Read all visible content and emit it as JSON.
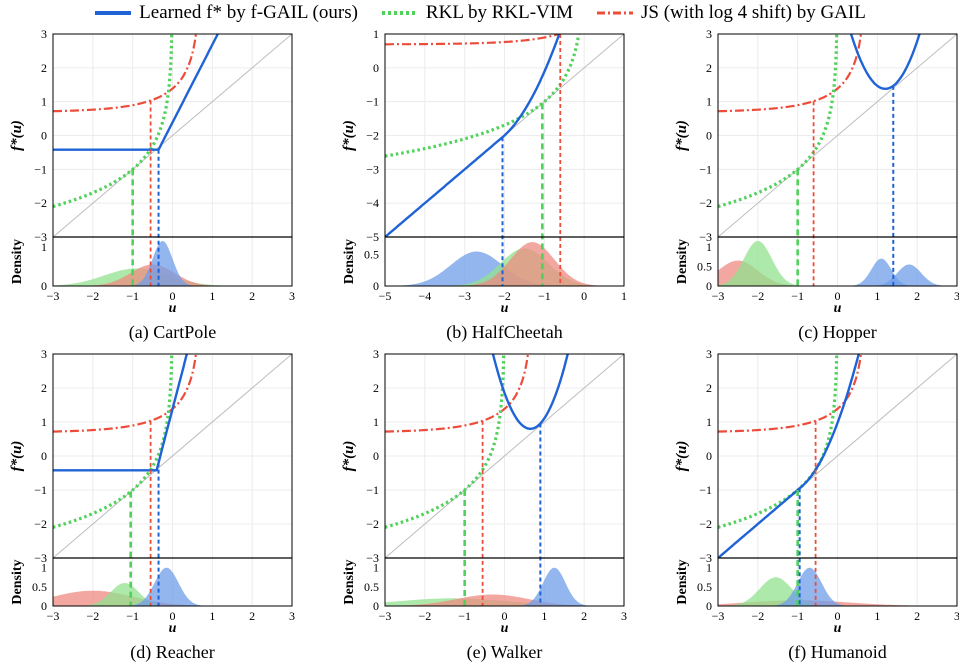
{
  "colors": {
    "learned": "#1f63d6",
    "rkl": "#4fd15a",
    "js": "#ec4d3b",
    "identity": "#bdbdbd",
    "grid": "#ececec",
    "density_learned": "#6f9ee8",
    "density_rkl": "#90e28f",
    "density_js": "#ee8b80"
  },
  "legend": [
    {
      "key": "learned",
      "label": "Learned f* by f-GAIL (ours)",
      "style": "solid"
    },
    {
      "key": "rkl",
      "label": "RKL by RKL-VIM",
      "style": "dotted"
    },
    {
      "key": "js",
      "label": "JS (with log 4 shift) by GAIL",
      "style": "dashdot"
    }
  ],
  "chart_data": [
    {
      "type": "line",
      "caption": "(a) CartPole",
      "ylabel": "f*(u)",
      "xlabel": "u",
      "density_label": "Density",
      "xlim": [
        -3,
        3
      ],
      "ylim": [
        -3,
        3
      ],
      "xticks": [
        -3,
        -2,
        -1,
        0,
        1,
        2,
        3
      ],
      "yticks": [
        -3,
        -2,
        -1,
        0,
        1,
        2,
        3
      ],
      "density_yticks": [
        0,
        1
      ],
      "density_ymax": 1.2,
      "learned": {
        "kind": "piecewise",
        "u0": -0.35,
        "c": -0.42,
        "slope": 2.3
      },
      "markers": {
        "learned": -0.35,
        "rkl": -1.0,
        "js": -0.55
      },
      "density": [
        {
          "key": "density_rkl",
          "mean": -0.9,
          "sd": 0.8,
          "amp": 0.45
        },
        {
          "key": "density_js",
          "mean": -0.5,
          "sd": 0.55,
          "amp": 0.55
        },
        {
          "key": "density_learned",
          "mean": -0.25,
          "sd": 0.25,
          "amp": 1.15
        }
      ]
    },
    {
      "type": "line",
      "caption": "(b) HalfCheetah",
      "ylabel": "f*(u)",
      "xlabel": "u",
      "density_label": "Density",
      "xlim": [
        -5,
        1
      ],
      "ylim": [
        -5,
        1
      ],
      "xticks": [
        -5,
        -4,
        -3,
        -2,
        -1,
        0,
        1
      ],
      "yticks": [
        -5,
        -4,
        -3,
        -2,
        -1,
        0,
        1
      ],
      "density_yticks": [
        0,
        0.5
      ],
      "density_ymax": 0.75,
      "learned": {
        "kind": "convex",
        "u0": -2.05,
        "y0": -2.05,
        "a": 0.8
      },
      "markers": {
        "learned": -2.05,
        "rkl": -1.05,
        "js": -0.6
      },
      "density": [
        {
          "key": "density_learned",
          "mean": -2.7,
          "sd": 0.65,
          "amp": 0.55
        },
        {
          "key": "density_rkl",
          "mean": -1.5,
          "sd": 0.6,
          "amp": 0.6
        },
        {
          "key": "density_js",
          "mean": -1.3,
          "sd": 0.55,
          "amp": 0.7
        }
      ]
    },
    {
      "type": "line",
      "caption": "(c) Hopper",
      "ylabel": "f*(u)",
      "xlabel": "u",
      "density_label": "Density",
      "xlim": [
        -3,
        3
      ],
      "ylim": [
        -3,
        3
      ],
      "xticks": [
        -3,
        -2,
        -1,
        0,
        1,
        2,
        3
      ],
      "yticks": [
        -3,
        -2,
        -1,
        0,
        1,
        2,
        3
      ],
      "density_yticks": [
        0,
        0.5,
        1
      ],
      "density_ymax": 1.2,
      "learned": {
        "kind": "parabola",
        "v": 1.2,
        "m": 1.38,
        "a": 2.2
      },
      "markers": {
        "learned": 1.4,
        "rkl": -1.0,
        "js": -0.6
      },
      "density": [
        {
          "key": "density_js",
          "mean": -2.5,
          "sd": 0.5,
          "amp": 0.65
        },
        {
          "key": "density_rkl",
          "mean": -2.0,
          "sd": 0.35,
          "amp": 1.15
        },
        {
          "key": "density_learned",
          "mean": 1.1,
          "sd": 0.25,
          "amp": 0.7
        },
        {
          "key": "density_learned",
          "mean": 1.8,
          "sd": 0.3,
          "amp": 0.55
        }
      ]
    },
    {
      "type": "line",
      "caption": "(d) Reacher",
      "ylabel": "f*(u)",
      "xlabel": "u",
      "density_label": "Density",
      "xlim": [
        -3,
        3
      ],
      "ylim": [
        -3,
        3
      ],
      "xticks": [
        -3,
        -2,
        -1,
        0,
        1,
        2,
        3
      ],
      "yticks": [
        -3,
        -2,
        -1,
        0,
        1,
        2,
        3
      ],
      "density_yticks": [
        0,
        0.5,
        1
      ],
      "density_ymax": 1.2,
      "learned": {
        "kind": "piecewise",
        "u0": -0.4,
        "c": -0.42,
        "slope": 4.5
      },
      "markers": {
        "learned": -0.35,
        "rkl": -1.05,
        "js": -0.55
      },
      "density": [
        {
          "key": "density_js",
          "mean": -2.0,
          "sd": 1.0,
          "amp": 0.4
        },
        {
          "key": "density_rkl",
          "mean": -1.2,
          "sd": 0.35,
          "amp": 0.6
        },
        {
          "key": "density_learned",
          "mean": -0.15,
          "sd": 0.3,
          "amp": 1.0
        }
      ]
    },
    {
      "type": "line",
      "caption": "(e) Walker",
      "ylabel": "f*(u)",
      "xlabel": "u",
      "density_label": "Density",
      "xlim": [
        -3,
        3
      ],
      "ylim": [
        -3,
        3
      ],
      "xticks": [
        -3,
        -2,
        -1,
        0,
        1,
        2,
        3
      ],
      "yticks": [
        -3,
        -2,
        -1,
        0,
        1,
        2,
        3
      ],
      "density_yticks": [
        0,
        0.5,
        1
      ],
      "density_ymax": 1.2,
      "learned": {
        "kind": "parabola",
        "v": 0.65,
        "m": 0.8,
        "a": 2.5
      },
      "markers": {
        "learned": 0.9,
        "rkl": -1.0,
        "js": -0.55
      },
      "density": [
        {
          "key": "density_rkl",
          "mean": -1.3,
          "sd": 1.4,
          "amp": 0.2
        },
        {
          "key": "density_js",
          "mean": -0.3,
          "sd": 0.9,
          "amp": 0.3
        },
        {
          "key": "density_learned",
          "mean": 1.25,
          "sd": 0.28,
          "amp": 1.0
        }
      ]
    },
    {
      "type": "line",
      "caption": "(f) Humanoid",
      "ylabel": "f*(u)",
      "xlabel": "u",
      "density_label": "Density",
      "xlim": [
        -3,
        3
      ],
      "ylim": [
        -3,
        3
      ],
      "xticks": [
        -3,
        -2,
        -1,
        0,
        1,
        2,
        3
      ],
      "yticks": [
        -3,
        -2,
        -1,
        0,
        1,
        2,
        3
      ],
      "density_yticks": [
        0,
        0.5,
        1
      ],
      "density_ymax": 1.2,
      "learned": {
        "kind": "convex",
        "u0": -0.9,
        "y0": -0.9,
        "a": 1.2
      },
      "markers": {
        "learned": -0.95,
        "rkl": -1.0,
        "js": -0.55
      },
      "density": [
        {
          "key": "density_js",
          "mean": -1.0,
          "sd": 1.3,
          "amp": 0.15
        },
        {
          "key": "density_rkl",
          "mean": -1.55,
          "sd": 0.4,
          "amp": 0.75
        },
        {
          "key": "density_learned",
          "mean": -0.7,
          "sd": 0.3,
          "amp": 1.0
        }
      ]
    }
  ]
}
